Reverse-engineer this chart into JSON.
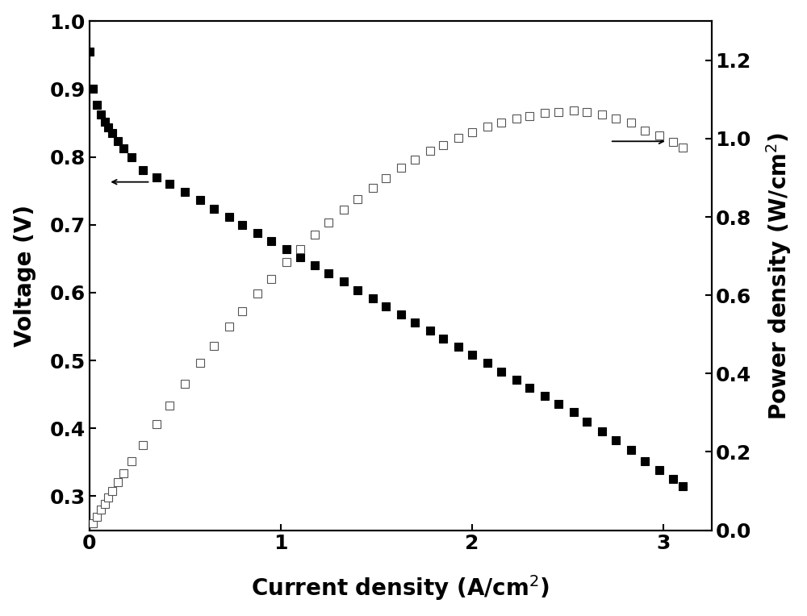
{
  "voltage_current": [
    [
      0.0,
      0.955
    ],
    [
      0.02,
      0.9
    ],
    [
      0.04,
      0.877
    ],
    [
      0.06,
      0.863
    ],
    [
      0.08,
      0.852
    ],
    [
      0.1,
      0.843
    ],
    [
      0.12,
      0.835
    ],
    [
      0.15,
      0.823
    ],
    [
      0.18,
      0.812
    ],
    [
      0.22,
      0.8
    ],
    [
      0.28,
      0.78
    ],
    [
      0.35,
      0.77
    ],
    [
      0.42,
      0.76
    ],
    [
      0.5,
      0.748
    ],
    [
      0.58,
      0.736
    ],
    [
      0.65,
      0.724
    ],
    [
      0.73,
      0.712
    ],
    [
      0.8,
      0.7
    ],
    [
      0.88,
      0.688
    ],
    [
      0.95,
      0.676
    ],
    [
      1.03,
      0.664
    ],
    [
      1.1,
      0.652
    ],
    [
      1.18,
      0.64
    ],
    [
      1.25,
      0.628
    ],
    [
      1.33,
      0.616
    ],
    [
      1.4,
      0.604
    ],
    [
      1.48,
      0.592
    ],
    [
      1.55,
      0.58
    ],
    [
      1.63,
      0.568
    ],
    [
      1.7,
      0.556
    ],
    [
      1.78,
      0.544
    ],
    [
      1.85,
      0.532
    ],
    [
      1.93,
      0.52
    ],
    [
      2.0,
      0.508
    ],
    [
      2.08,
      0.496
    ],
    [
      2.15,
      0.484
    ],
    [
      2.23,
      0.472
    ],
    [
      2.3,
      0.46
    ],
    [
      2.38,
      0.448
    ],
    [
      2.45,
      0.436
    ],
    [
      2.53,
      0.424
    ],
    [
      2.6,
      0.41
    ],
    [
      2.68,
      0.396
    ],
    [
      2.75,
      0.382
    ],
    [
      2.83,
      0.368
    ],
    [
      2.9,
      0.352
    ],
    [
      2.98,
      0.338
    ],
    [
      3.05,
      0.325
    ],
    [
      3.1,
      0.315
    ]
  ],
  "power_current": [
    [
      0.02,
      0.018
    ],
    [
      0.04,
      0.035
    ],
    [
      0.06,
      0.052
    ],
    [
      0.08,
      0.068
    ],
    [
      0.1,
      0.084
    ],
    [
      0.12,
      0.1
    ],
    [
      0.15,
      0.123
    ],
    [
      0.18,
      0.146
    ],
    [
      0.22,
      0.176
    ],
    [
      0.28,
      0.218
    ],
    [
      0.35,
      0.27
    ],
    [
      0.42,
      0.319
    ],
    [
      0.5,
      0.374
    ],
    [
      0.58,
      0.427
    ],
    [
      0.65,
      0.471
    ],
    [
      0.73,
      0.52
    ],
    [
      0.8,
      0.56
    ],
    [
      0.88,
      0.605
    ],
    [
      0.95,
      0.642
    ],
    [
      1.03,
      0.684
    ],
    [
      1.1,
      0.717
    ],
    [
      1.18,
      0.755
    ],
    [
      1.25,
      0.785
    ],
    [
      1.33,
      0.819
    ],
    [
      1.4,
      0.846
    ],
    [
      1.48,
      0.875
    ],
    [
      1.55,
      0.899
    ],
    [
      1.63,
      0.926
    ],
    [
      1.7,
      0.946
    ],
    [
      1.78,
      0.968
    ],
    [
      1.85,
      0.984
    ],
    [
      1.93,
      1.002
    ],
    [
      2.0,
      1.016
    ],
    [
      2.08,
      1.031
    ],
    [
      2.15,
      1.04
    ],
    [
      2.23,
      1.052
    ],
    [
      2.3,
      1.058
    ],
    [
      2.38,
      1.066
    ],
    [
      2.45,
      1.068
    ],
    [
      2.53,
      1.072
    ],
    [
      2.6,
      1.067
    ],
    [
      2.68,
      1.061
    ],
    [
      2.75,
      1.051
    ],
    [
      2.83,
      1.041
    ],
    [
      2.9,
      1.021
    ],
    [
      2.98,
      1.007
    ],
    [
      3.05,
      0.991
    ],
    [
      3.1,
      0.977
    ]
  ],
  "xlim": [
    0,
    3.25
  ],
  "ylim_left": [
    0.25,
    1.0
  ],
  "ylim_right": [
    0.0,
    1.3
  ],
  "xlabel": "Current density (A/cm$^2$)",
  "ylabel_left": "Voltage (V)",
  "ylabel_right": "Power density (W/cm$^2$)",
  "xticks": [
    0,
    1,
    2,
    3
  ],
  "yticks_left": [
    0.3,
    0.4,
    0.5,
    0.6,
    0.7,
    0.8,
    0.9,
    1.0
  ],
  "yticks_right": [
    0.0,
    0.2,
    0.4,
    0.6,
    0.8,
    1.0,
    1.2
  ],
  "background_color": "#ffffff",
  "marker_size": 6.5
}
